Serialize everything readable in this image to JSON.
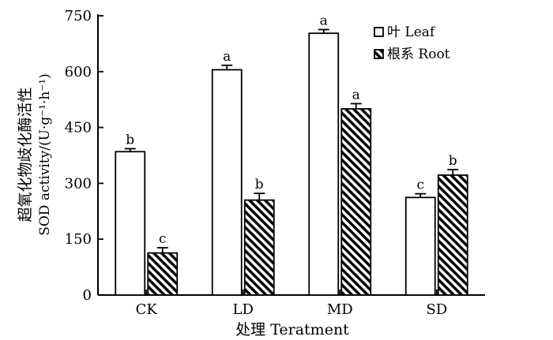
{
  "chart_data": {
    "type": "bar",
    "title": "",
    "xlabel": "处理 Teratment",
    "ylabel_cn": "超氧化物歧化酶活性",
    "ylabel_en": "SOD activity/(U·g⁻¹·h⁻¹)",
    "ylim": [
      0,
      750
    ],
    "yticks": [
      "0",
      "150",
      "300",
      "450",
      "600",
      "750"
    ],
    "categories": [
      "CK",
      "LD",
      "MD",
      "SD"
    ],
    "legend_position": "top-right",
    "grid": false,
    "series": [
      {
        "name": "叶 Leaf",
        "pattern": "open",
        "values": [
          385,
          605,
          703,
          262
        ],
        "errors": [
          8,
          12,
          10,
          10
        ],
        "letters": [
          "b",
          "a",
          "a",
          "c"
        ]
      },
      {
        "name": "根系 Root",
        "pattern": "diagonal-hatch",
        "values": [
          113,
          255,
          500,
          322
        ],
        "errors": [
          14,
          18,
          14,
          15
        ],
        "letters": [
          "c",
          "b",
          "a",
          "b"
        ]
      }
    ]
  }
}
